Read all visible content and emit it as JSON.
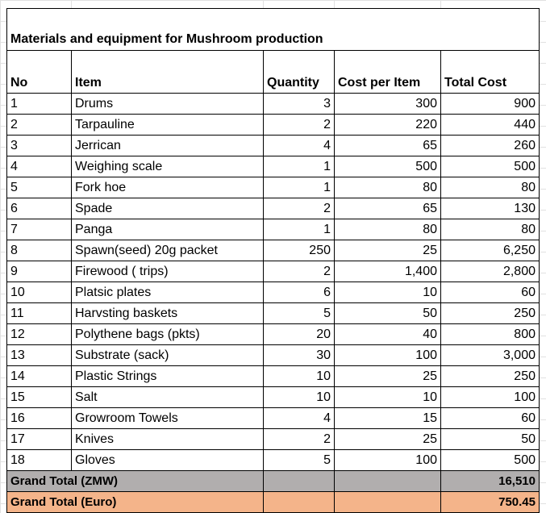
{
  "title": "Materials and equipment for Mushroom production",
  "columns": [
    "No",
    "Item",
    "Quantity",
    "Cost per Item",
    "Total Cost"
  ],
  "rows": [
    [
      "1",
      "Drums",
      "3",
      "300",
      "900"
    ],
    [
      "2",
      "Tarpauline",
      "2",
      "220",
      "440"
    ],
    [
      "3",
      "Jerrican",
      "4",
      "65",
      "260"
    ],
    [
      "4",
      "Weighing scale",
      "1",
      "500",
      "500"
    ],
    [
      "5",
      "Fork hoe",
      "1",
      "80",
      "80"
    ],
    [
      "6",
      "Spade",
      "2",
      "65",
      "130"
    ],
    [
      "7",
      "Panga",
      "1",
      "80",
      "80"
    ],
    [
      "8",
      "Spawn(seed) 20g packet",
      "250",
      "25",
      "6,250"
    ],
    [
      "9",
      "Firewood ( trips)",
      "2",
      "1,400",
      "2,800"
    ],
    [
      "10",
      "Platsic plates",
      "6",
      "10",
      "60"
    ],
    [
      "11",
      "Harvsting baskets",
      "5",
      "50",
      "250"
    ],
    [
      "12",
      "Polythene bags (pkts)",
      "20",
      "40",
      "800"
    ],
    [
      "13",
      "Substrate (sack)",
      "30",
      "100",
      "3,000"
    ],
    [
      "14",
      "Plastic Strings",
      "10",
      "25",
      "250"
    ],
    [
      "15",
      "Salt",
      "10",
      "10",
      "100"
    ],
    [
      "16",
      "Growroom Towels",
      "4",
      "15",
      "60"
    ],
    [
      "17",
      "Knives",
      "2",
      "25",
      "50"
    ],
    [
      "18",
      "Gloves",
      "5",
      "100",
      "500"
    ]
  ],
  "grand_total_zmw": {
    "label": "Grand Total (ZMW)",
    "value": "16,510"
  },
  "grand_total_euro": {
    "label": "Grand Total (Euro)",
    "value": "750.45"
  },
  "colors": {
    "zmw_fill": "#b1aeae",
    "euro_fill": "#f4b48a"
  }
}
